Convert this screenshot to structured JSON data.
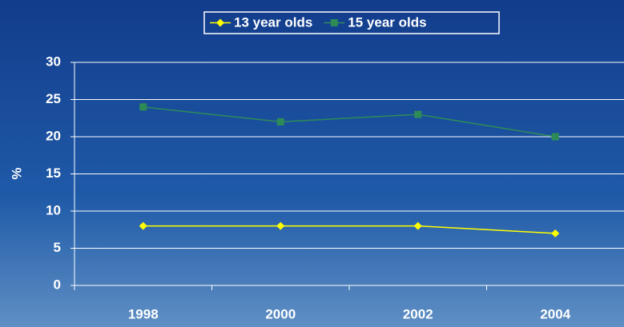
{
  "chart_data": {
    "type": "line",
    "y_label": "%",
    "categories": [
      "1998",
      "2000",
      "2002",
      "2004"
    ],
    "series": [
      {
        "name": "13 year olds",
        "color": "#ffff00",
        "marker": "diamond",
        "values": [
          8,
          8,
          8,
          7
        ]
      },
      {
        "name": "15 year olds",
        "color": "#2e8b57",
        "marker": "square",
        "values": [
          24,
          22,
          23,
          20
        ]
      }
    ],
    "ylim": [
      0,
      30
    ],
    "yticks": [
      0,
      5,
      10,
      15,
      20,
      25,
      30
    ],
    "grid": true,
    "legend": "top"
  }
}
